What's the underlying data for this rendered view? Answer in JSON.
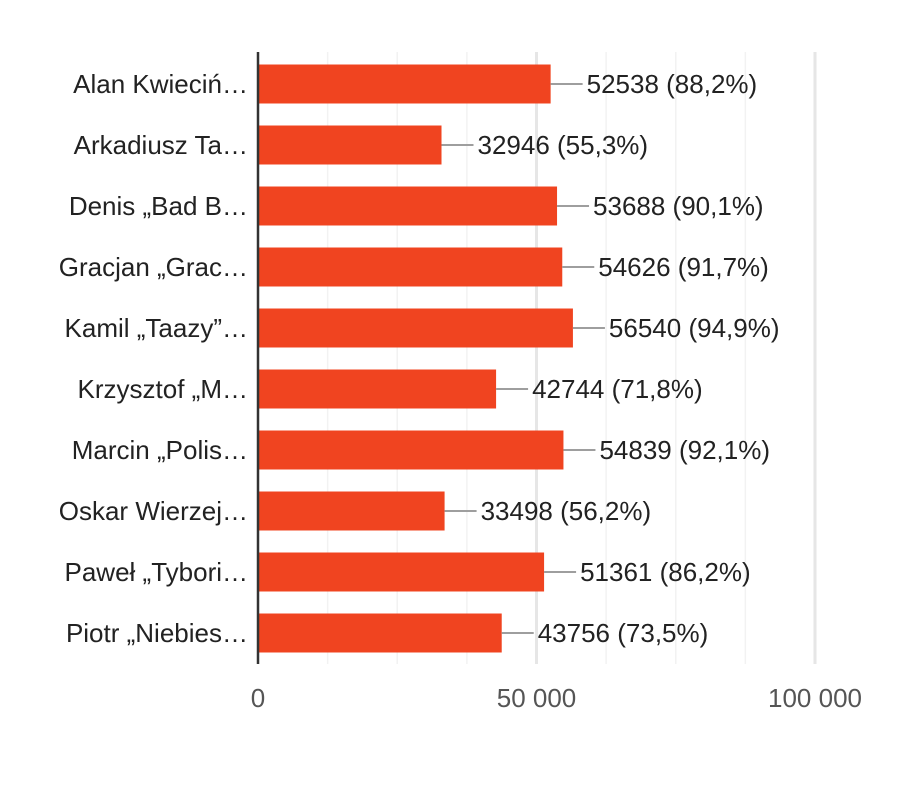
{
  "chart_data": {
    "type": "bar",
    "orientation": "horizontal",
    "title": "",
    "xlabel": "",
    "ylabel": "",
    "xlim": [
      0,
      100000
    ],
    "x_ticks": [
      0,
      50000,
      100000
    ],
    "x_tick_labels": [
      "0",
      "50 000",
      "100 000"
    ],
    "grid": true,
    "legend": "none",
    "bar_color": "#f04420",
    "categories": [
      "Alan Kwieciń…",
      "Arkadiusz Ta…",
      "Denis „Bad B…",
      "Gracjan „Grac…",
      "Kamil „Taazy”…",
      "Krzysztof „M…",
      "Marcin „Polis…",
      "Oskar Wierzej…",
      "Paweł „Tybori…",
      "Piotr „Niebies…"
    ],
    "values": [
      52538,
      32946,
      53688,
      54626,
      56540,
      42744,
      54839,
      33498,
      51361,
      43756
    ],
    "data_labels": [
      "52538 (88,2%)",
      "32946 (55,3%)",
      "53688 (90,1%)",
      "54626 (91,7%)",
      "56540 (94,9%)",
      "42744 (71,8%)",
      "54839 (92,1%)",
      "33498 (56,2%)",
      "51361 (86,2%)",
      "43756 (73,5%)"
    ]
  }
}
